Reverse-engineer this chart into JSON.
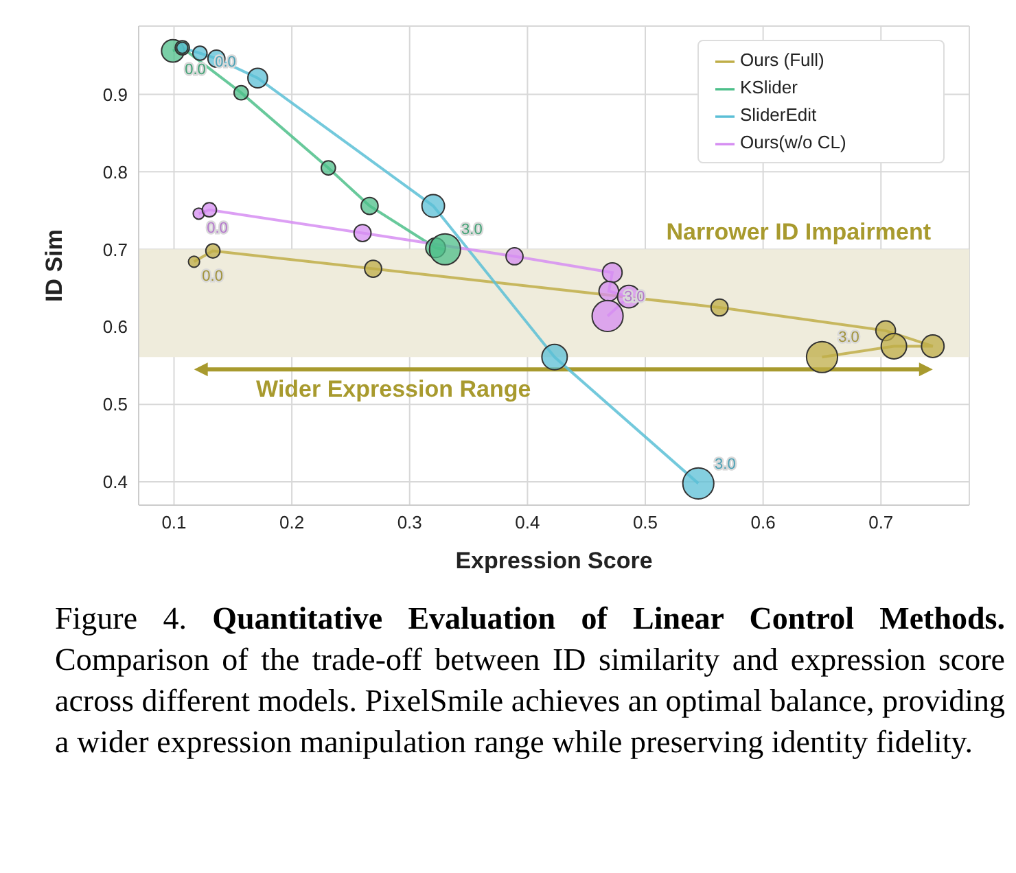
{
  "chart_data": {
    "type": "line",
    "title": "Quantitative Evaluation of Linear Control Methods.",
    "xlabel": "Expression Score",
    "ylabel": "ID Sim",
    "xlim": [
      0.07,
      0.775
    ],
    "xticks": [
      0.1,
      0.2,
      0.3,
      0.4,
      0.5,
      0.6,
      0.7
    ],
    "ylim": [
      0.37,
      0.988
    ],
    "yticks": [
      0.4,
      0.5,
      0.6,
      0.7,
      0.8,
      0.9
    ],
    "grid": true,
    "legend": "top right",
    "line_style": "solid",
    "series": [
      {
        "name": "Ours (Full)",
        "color": "#bfae48",
        "x": [
          0.117,
          0.133,
          0.269,
          0.563,
          0.704,
          0.744,
          0.711,
          0.65
        ],
        "values": [
          0.684,
          0.698,
          0.675,
          0.625,
          0.595,
          0.575,
          0.575,
          0.561
        ]
      },
      {
        "name": "KSlider",
        "color": "#4dbf8a",
        "x": [
          0.099,
          0.107,
          0.157,
          0.231,
          0.266,
          0.322,
          0.33
        ],
        "values": [
          0.956,
          0.96,
          0.902,
          0.805,
          0.756,
          0.702,
          0.7
        ]
      },
      {
        "name": "SliderEdit",
        "color": "#5bbfd6",
        "x": [
          0.107,
          0.122,
          0.136,
          0.171,
          0.32,
          0.423,
          0.545
        ],
        "values": [
          0.96,
          0.953,
          0.946,
          0.921,
          0.756,
          0.561,
          0.398
        ]
      },
      {
        "name": "Ours(w/o CL)",
        "color": "#d68ef2",
        "x": [
          0.121,
          0.13,
          0.26,
          0.389,
          0.472,
          0.469,
          0.486,
          0.468
        ],
        "values": [
          0.746,
          0.751,
          0.721,
          0.691,
          0.67,
          0.646,
          0.639,
          0.614
        ]
      },
      {
        "type": "bubble",
        "color": "#bfae48",
        "x": [
          0.117,
          0.133,
          0.269,
          0.563,
          0.704,
          0.744,
          0.711,
          0.65
        ],
        "values": [
          0.684,
          0.698,
          0.675,
          0.625,
          0.595,
          0.575,
          0.575,
          0.561
        ],
        "sizes": [
          0.13,
          0.21,
          0.3,
          0.3,
          0.4,
          0.53,
          0.67,
          1
        ]
      },
      {
        "type": "bubble",
        "color": "#4dbf8a",
        "x": [
          0.099,
          0.107,
          0.157,
          0.231,
          0.266,
          0.322,
          0.33
        ],
        "values": [
          0.956,
          0.96,
          0.902,
          0.805,
          0.756,
          0.702,
          0.7
        ],
        "sizes": [
          0.53,
          0.21,
          0.21,
          0.21,
          0.3,
          0.4,
          1
        ]
      },
      {
        "type": "bubble",
        "color": "#5bbfd6",
        "x": [
          0.107,
          0.122,
          0.136,
          0.171,
          0.32,
          0.423,
          0.545
        ],
        "values": [
          0.96,
          0.953,
          0.946,
          0.921,
          0.756,
          0.561,
          0.398
        ],
        "sizes": [
          0.13,
          0.21,
          0.3,
          0.4,
          0.53,
          0.67,
          1
        ]
      },
      {
        "type": "bubble",
        "color": "#d68ef2",
        "x": [
          0.121,
          0.13,
          0.26,
          0.389,
          0.472,
          0.469,
          0.486,
          0.468
        ],
        "values": [
          0.746,
          0.751,
          0.721,
          0.691,
          0.67,
          0.646,
          0.639,
          0.614
        ],
        "sizes": [
          0.13,
          0.21,
          0.3,
          0.3,
          0.4,
          0.4,
          0.53,
          1
        ]
      }
    ],
    "bands": [
      {
        "axis": "y",
        "from": 0.561,
        "to": 0.7,
        "label": "Narrower ID Impairment",
        "color": "#efecdc"
      }
    ],
    "annotations": [
      {
        "text": "0.0",
        "x": 0.117,
        "y": 0.684
      },
      {
        "text": "3.0",
        "x": 0.65,
        "y": 0.561
      },
      {
        "text": "0.0",
        "x": 0.099,
        "y": 0.956
      },
      {
        "text": "3.0",
        "x": 0.33,
        "y": 0.7
      },
      {
        "text": "0.0",
        "x": 0.107,
        "y": 0.96
      },
      {
        "text": "3.0",
        "x": 0.545,
        "y": 0.398
      },
      {
        "text": "0.0",
        "x": 0.121,
        "y": 0.746
      },
      {
        "text": "3.0",
        "x": 0.468,
        "y": 0.614
      },
      "Wider Expression Range",
      "Figure 4.",
      "Comparison of the trade-off between ID similarity and expression score across different models. PixelSmile achieves an optimal balance, providing a wider expression manipulation range while preserving identity fidelity."
    ]
  }
}
